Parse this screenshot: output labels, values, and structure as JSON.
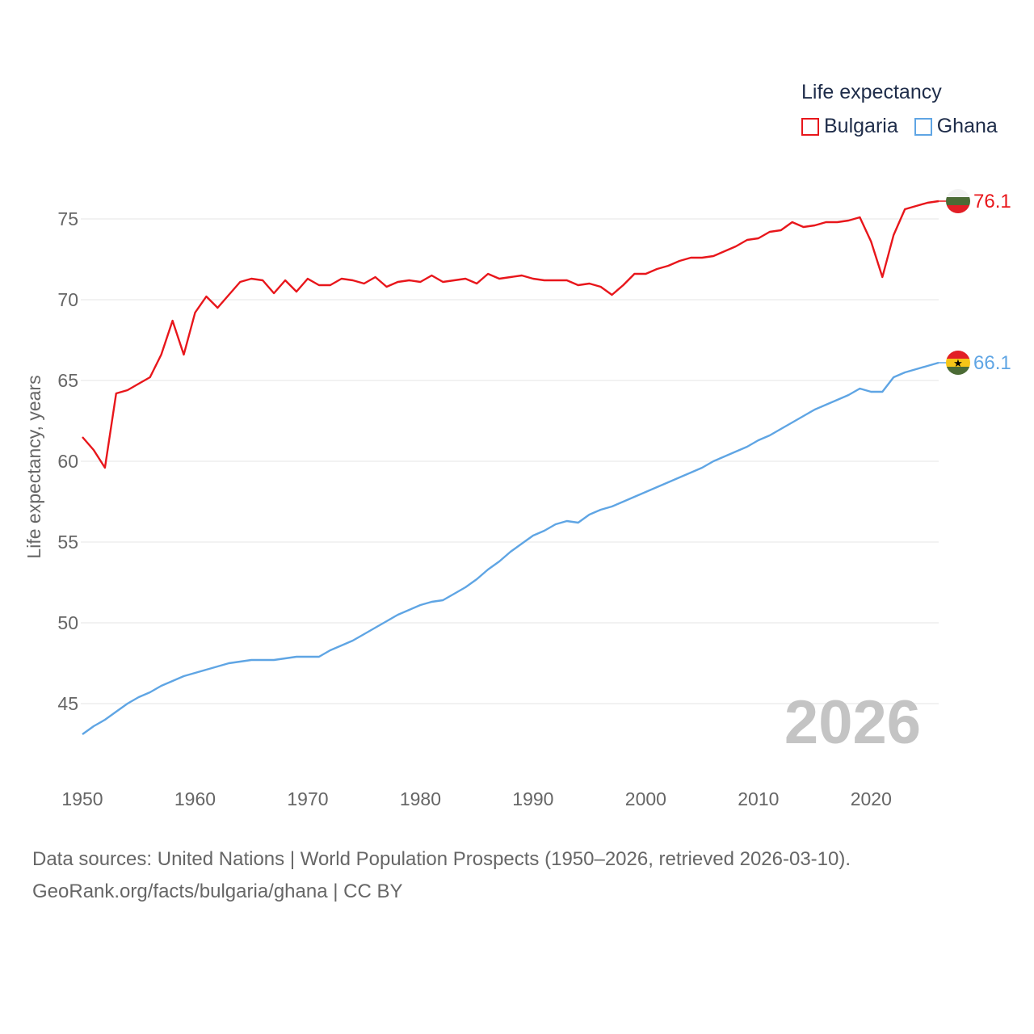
{
  "legend": {
    "title": "Life expectancy",
    "items": [
      {
        "label": "Bulgaria",
        "color": "#e8161b"
      },
      {
        "label": "Ghana",
        "color": "#5fa5e4"
      }
    ]
  },
  "year_overlay": "2026",
  "footer": {
    "line1": "Data sources: United Nations | World Population Prospects (1950–2026, retrieved 2026-03-10).",
    "line2": "GeoRank.org/facts/bulgaria/ghana | CC BY"
  },
  "chart_data": {
    "type": "line",
    "title": "Life expectancy",
    "xlabel": "",
    "ylabel": "Life expectancy, years",
    "xlim": [
      1950,
      2026
    ],
    "ylim": [
      42,
      78
    ],
    "x_ticks": [
      1950,
      1960,
      1970,
      1980,
      1990,
      2000,
      2010,
      2020
    ],
    "y_ticks": [
      45,
      50,
      55,
      60,
      65,
      70,
      75
    ],
    "grid": true,
    "series": [
      {
        "name": "Bulgaria",
        "color": "#e8161b",
        "end_label": "76.1",
        "points": [
          [
            1950,
            61.5
          ],
          [
            1951,
            60.7
          ],
          [
            1952,
            59.6
          ],
          [
            1953,
            64.2
          ],
          [
            1954,
            64.4
          ],
          [
            1955,
            64.8
          ],
          [
            1956,
            65.2
          ],
          [
            1957,
            66.6
          ],
          [
            1958,
            68.7
          ],
          [
            1959,
            66.6
          ],
          [
            1960,
            69.2
          ],
          [
            1961,
            70.2
          ],
          [
            1962,
            69.5
          ],
          [
            1963,
            70.3
          ],
          [
            1964,
            71.1
          ],
          [
            1965,
            71.3
          ],
          [
            1966,
            71.2
          ],
          [
            1967,
            70.4
          ],
          [
            1968,
            71.2
          ],
          [
            1969,
            70.5
          ],
          [
            1970,
            71.3
          ],
          [
            1971,
            70.9
          ],
          [
            1972,
            70.9
          ],
          [
            1973,
            71.3
          ],
          [
            1974,
            71.2
          ],
          [
            1975,
            71.0
          ],
          [
            1976,
            71.4
          ],
          [
            1977,
            70.8
          ],
          [
            1978,
            71.1
          ],
          [
            1979,
            71.2
          ],
          [
            1980,
            71.1
          ],
          [
            1981,
            71.5
          ],
          [
            1982,
            71.1
          ],
          [
            1983,
            71.2
          ],
          [
            1984,
            71.3
          ],
          [
            1985,
            71.0
          ],
          [
            1986,
            71.6
          ],
          [
            1987,
            71.3
          ],
          [
            1988,
            71.4
          ],
          [
            1989,
            71.5
          ],
          [
            1990,
            71.3
          ],
          [
            1991,
            71.2
          ],
          [
            1992,
            71.2
          ],
          [
            1993,
            71.2
          ],
          [
            1994,
            70.9
          ],
          [
            1995,
            71.0
          ],
          [
            1996,
            70.8
          ],
          [
            1997,
            70.3
          ],
          [
            1998,
            70.9
          ],
          [
            1999,
            71.6
          ],
          [
            2000,
            71.6
          ],
          [
            2001,
            71.9
          ],
          [
            2002,
            72.1
          ],
          [
            2003,
            72.4
          ],
          [
            2004,
            72.6
          ],
          [
            2005,
            72.6
          ],
          [
            2006,
            72.7
          ],
          [
            2007,
            73.0
          ],
          [
            2008,
            73.3
          ],
          [
            2009,
            73.7
          ],
          [
            2010,
            73.8
          ],
          [
            2011,
            74.2
          ],
          [
            2012,
            74.3
          ],
          [
            2013,
            74.8
          ],
          [
            2014,
            74.5
          ],
          [
            2015,
            74.6
          ],
          [
            2016,
            74.8
          ],
          [
            2017,
            74.8
          ],
          [
            2018,
            74.9
          ],
          [
            2019,
            75.1
          ],
          [
            2020,
            73.6
          ],
          [
            2021,
            71.4
          ],
          [
            2022,
            74.0
          ],
          [
            2023,
            75.6
          ],
          [
            2024,
            75.8
          ],
          [
            2025,
            76.0
          ],
          [
            2026,
            76.1
          ]
        ]
      },
      {
        "name": "Ghana",
        "color": "#5fa5e4",
        "end_label": "66.1",
        "points": [
          [
            1950,
            43.1
          ],
          [
            1951,
            43.6
          ],
          [
            1952,
            44.0
          ],
          [
            1953,
            44.5
          ],
          [
            1954,
            45.0
          ],
          [
            1955,
            45.4
          ],
          [
            1956,
            45.7
          ],
          [
            1957,
            46.1
          ],
          [
            1958,
            46.4
          ],
          [
            1959,
            46.7
          ],
          [
            1960,
            46.9
          ],
          [
            1961,
            47.1
          ],
          [
            1962,
            47.3
          ],
          [
            1963,
            47.5
          ],
          [
            1964,
            47.6
          ],
          [
            1965,
            47.7
          ],
          [
            1966,
            47.7
          ],
          [
            1967,
            47.7
          ],
          [
            1968,
            47.8
          ],
          [
            1969,
            47.9
          ],
          [
            1970,
            47.9
          ],
          [
            1971,
            47.9
          ],
          [
            1972,
            48.3
          ],
          [
            1973,
            48.6
          ],
          [
            1974,
            48.9
          ],
          [
            1975,
            49.3
          ],
          [
            1976,
            49.7
          ],
          [
            1977,
            50.1
          ],
          [
            1978,
            50.5
          ],
          [
            1979,
            50.8
          ],
          [
            1980,
            51.1
          ],
          [
            1981,
            51.3
          ],
          [
            1982,
            51.4
          ],
          [
            1983,
            51.8
          ],
          [
            1984,
            52.2
          ],
          [
            1985,
            52.7
          ],
          [
            1986,
            53.3
          ],
          [
            1987,
            53.8
          ],
          [
            1988,
            54.4
          ],
          [
            1989,
            54.9
          ],
          [
            1990,
            55.4
          ],
          [
            1991,
            55.7
          ],
          [
            1992,
            56.1
          ],
          [
            1993,
            56.3
          ],
          [
            1994,
            56.2
          ],
          [
            1995,
            56.7
          ],
          [
            1996,
            57.0
          ],
          [
            1997,
            57.2
          ],
          [
            1998,
            57.5
          ],
          [
            1999,
            57.8
          ],
          [
            2000,
            58.1
          ],
          [
            2001,
            58.4
          ],
          [
            2002,
            58.7
          ],
          [
            2003,
            59.0
          ],
          [
            2004,
            59.3
          ],
          [
            2005,
            59.6
          ],
          [
            2006,
            60.0
          ],
          [
            2007,
            60.3
          ],
          [
            2008,
            60.6
          ],
          [
            2009,
            60.9
          ],
          [
            2010,
            61.3
          ],
          [
            2011,
            61.6
          ],
          [
            2012,
            62.0
          ],
          [
            2013,
            62.4
          ],
          [
            2014,
            62.8
          ],
          [
            2015,
            63.2
          ],
          [
            2016,
            63.5
          ],
          [
            2017,
            63.8
          ],
          [
            2018,
            64.1
          ],
          [
            2019,
            64.5
          ],
          [
            2020,
            64.3
          ],
          [
            2021,
            64.3
          ],
          [
            2022,
            65.2
          ],
          [
            2023,
            65.5
          ],
          [
            2024,
            65.7
          ],
          [
            2025,
            65.9
          ],
          [
            2026,
            66.1
          ]
        ]
      }
    ]
  }
}
